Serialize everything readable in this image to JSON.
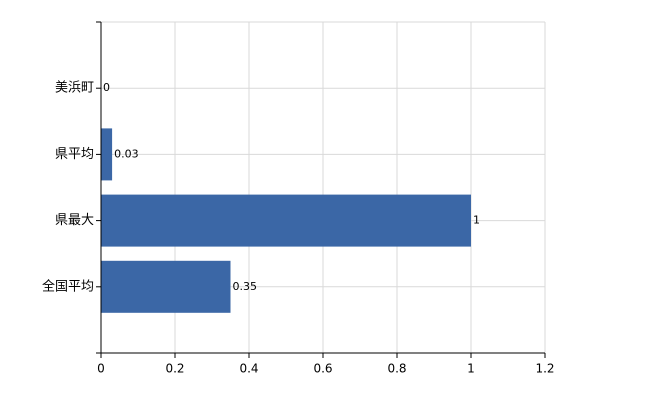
{
  "chart_data": {
    "type": "barh",
    "categories": [
      "美浜町",
      "県平均",
      "県最大",
      "全国平均"
    ],
    "values": [
      0,
      0.03,
      1,
      0.35
    ],
    "color": "#3b67a6",
    "xlim": [
      0,
      1.2
    ],
    "xticks": [
      0,
      0.2,
      0.4,
      0.6,
      0.8,
      1,
      1.2
    ],
    "grid": true,
    "value_labels_shown": true
  }
}
